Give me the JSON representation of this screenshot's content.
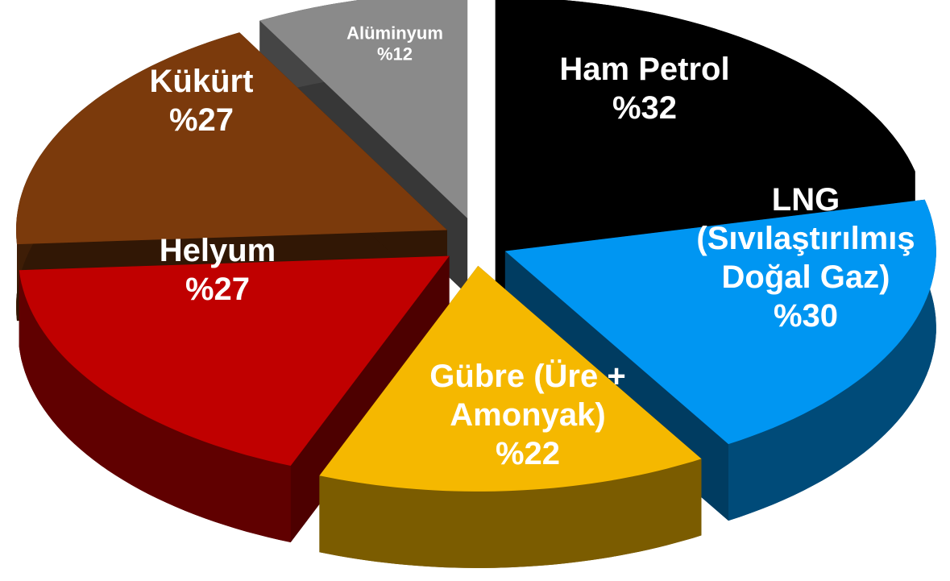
{
  "chart_data": {
    "type": "pie",
    "categories": [
      "Ham Petrol",
      "LNG (Sıvılaştırılmış Doğal Gaz)",
      "Gübre (Üre + Amonyak)",
      "Helyum",
      "Kükürt",
      "Alüminyum"
    ],
    "values": [
      32,
      30,
      22,
      27,
      27,
      12
    ],
    "value_labels": [
      "%32",
      "%30",
      "%22",
      "%27",
      "%27",
      "%12"
    ],
    "colors": [
      "#000000",
      "#0096f2",
      "#f5b800",
      "#c00000",
      "#7b3a0c",
      "#8a8a8a"
    ]
  }
}
